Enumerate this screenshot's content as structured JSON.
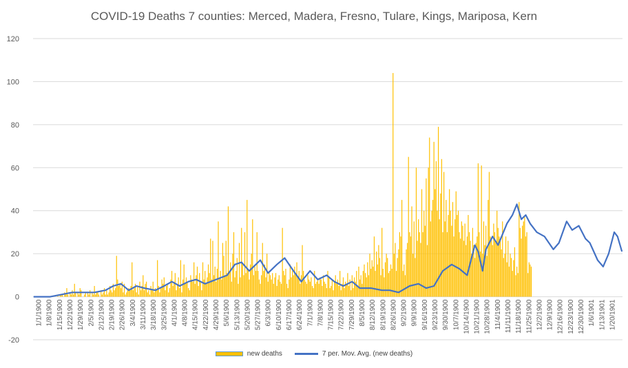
{
  "colors": {
    "bar": "#ffc000",
    "line": "#4472c4",
    "grid": "#d9d9d9",
    "text": "#595959"
  },
  "chart_data": {
    "type": "bar",
    "title": "COVID-19 Deaths 7 counties: Merced,  Madera, Fresno, Tulare,  Kings, Mariposa, Kern",
    "xlabel": "",
    "ylabel": "",
    "ylim": [
      -20,
      120
    ],
    "y_ticks": [
      -20,
      0,
      20,
      40,
      60,
      80,
      100,
      120
    ],
    "grid": "horizontal",
    "legend_position": "bottom",
    "x_tick_labels": [
      "1/1/1900",
      "1/8/1900",
      "1/15/1900",
      "1/22/1900",
      "1/29/1900",
      "2/5/1900",
      "2/12/1900",
      "2/19/1900",
      "2/26/1900",
      "3/4/1900",
      "3/11/1900",
      "3/18/1900",
      "3/25/1900",
      "4/1/1900",
      "4/8/1900",
      "4/15/1900",
      "4/22/1900",
      "4/29/1900",
      "5/6/1900",
      "5/13/1900",
      "5/20/1900",
      "5/27/1900",
      "6/3/1900",
      "6/10/1900",
      "6/17/1900",
      "6/24/1900",
      "7/1/1900",
      "7/8/1900",
      "7/15/1900",
      "7/22/1900",
      "7/29/1900",
      "8/5/1900",
      "8/12/1900",
      "8/19/1900",
      "8/26/1900",
      "9/2/1900",
      "9/9/1900",
      "9/16/1900",
      "9/23/1900",
      "9/30/1900",
      "10/7/1900",
      "10/14/1900",
      "10/21/1900",
      "10/28/1900",
      "11/4/1900",
      "11/11/1900",
      "11/18/1900",
      "11/25/1900",
      "12/2/1900",
      "12/9/1900",
      "12/16/1900",
      "12/23/1900",
      "12/30/1900",
      "1/6/1901",
      "1/13/1901",
      "1/20/1901"
    ],
    "series": [
      {
        "name": "new deaths",
        "kind": "bar",
        "values": [
          0,
          0,
          0,
          0,
          0,
          0,
          0,
          0,
          0,
          0,
          0,
          0,
          0,
          0,
          0,
          0,
          0,
          0,
          0,
          0,
          0,
          0,
          1,
          0,
          1,
          1,
          1,
          0,
          2,
          1,
          4,
          1,
          0,
          2,
          1,
          3,
          1,
          6,
          2,
          0,
          2,
          1,
          4,
          3,
          0,
          0,
          1,
          2,
          0,
          2,
          1,
          3,
          0,
          2,
          1,
          5,
          1,
          2,
          2,
          1,
          0,
          3,
          1,
          2,
          4,
          1,
          3,
          1,
          2,
          5,
          3,
          2,
          6,
          3,
          4,
          19,
          8,
          5,
          6,
          4,
          7,
          2,
          6,
          1,
          2,
          3,
          4,
          3,
          5,
          16,
          3,
          4,
          6,
          2,
          5,
          1,
          7,
          3,
          5,
          10,
          3,
          6,
          7,
          2,
          3,
          1,
          5,
          3,
          7,
          2,
          4,
          3,
          17,
          5,
          2,
          4,
          8,
          6,
          9,
          3,
          5,
          6,
          2,
          4,
          8,
          12,
          5,
          7,
          11,
          3,
          6,
          9,
          4,
          17,
          2,
          8,
          15,
          6,
          9,
          7,
          4,
          3,
          10,
          8,
          7,
          16,
          6,
          10,
          14,
          5,
          11,
          7,
          3,
          16,
          8,
          12,
          6,
          9,
          15,
          11,
          27,
          8,
          26,
          10,
          14,
          7,
          13,
          35,
          9,
          12,
          8,
          25,
          19,
          10,
          26,
          11,
          42,
          12,
          16,
          7,
          20,
          30,
          9,
          12,
          18,
          6,
          25,
          9,
          32,
          15,
          10,
          30,
          11,
          45,
          13,
          8,
          15,
          20,
          36,
          10,
          14,
          12,
          30,
          12,
          8,
          6,
          10,
          25,
          12,
          15,
          9,
          20,
          7,
          12,
          10,
          8,
          11,
          6,
          9,
          11,
          5,
          8,
          10,
          7,
          6,
          32,
          12,
          10,
          13,
          6,
          4,
          8,
          15,
          9,
          12,
          10,
          14,
          11,
          16,
          9,
          12,
          6,
          10,
          24,
          12,
          8,
          7,
          6,
          10,
          8,
          7,
          9,
          5,
          4,
          12,
          6,
          7,
          8,
          6,
          9,
          8,
          5,
          10,
          7,
          6,
          4,
          12,
          9,
          4,
          5,
          8,
          3,
          7,
          10,
          6,
          8,
          5,
          12,
          3,
          6,
          9,
          4,
          7,
          6,
          11,
          5,
          8,
          3,
          10,
          4,
          9,
          7,
          12,
          5,
          14,
          8,
          10,
          6,
          12,
          15,
          11,
          9,
          16,
          10,
          20,
          13,
          17,
          14,
          28,
          12,
          21,
          15,
          24,
          18,
          10,
          32,
          13,
          9,
          16,
          20,
          18,
          11,
          12,
          15,
          13,
          104,
          20,
          25,
          12,
          18,
          22,
          30,
          28,
          45,
          12,
          15,
          10,
          22,
          25,
          65,
          30,
          28,
          42,
          20,
          35,
          18,
          60,
          26,
          36,
          30,
          25,
          50,
          30,
          40,
          33,
          55,
          24,
          60,
          74,
          35,
          40,
          45,
          72,
          50,
          63,
          40,
          79,
          36,
          48,
          64,
          30,
          58,
          35,
          45,
          30,
          38,
          50,
          40,
          33,
          44,
          28,
          36,
          49,
          38,
          40,
          30,
          27,
          35,
          33,
          26,
          34,
          24,
          28,
          38,
          30,
          26,
          20,
          32,
          24,
          18,
          25,
          28,
          62,
          30,
          21,
          61,
          20,
          35,
          24,
          33,
          19,
          45,
          58,
          28,
          27,
          24,
          34,
          30,
          25,
          40,
          32,
          28,
          27,
          22,
          35,
          18,
          20,
          28,
          16,
          26,
          14,
          20,
          18,
          12,
          17,
          23,
          10,
          14,
          11,
          44,
          32,
          27,
          33,
          35,
          37,
          28,
          30,
          11,
          16,
          15,
          14
        ]
      },
      {
        "name": "7 per. Mov. Avg. (new deaths)",
        "kind": "line",
        "keyframes": [
          [
            0,
            0
          ],
          [
            15,
            0
          ],
          [
            25,
            1
          ],
          [
            35,
            2
          ],
          [
            45,
            2
          ],
          [
            55,
            2
          ],
          [
            65,
            3
          ],
          [
            72,
            5
          ],
          [
            79,
            6
          ],
          [
            86,
            3
          ],
          [
            93,
            5
          ],
          [
            100,
            4
          ],
          [
            110,
            3
          ],
          [
            118,
            5
          ],
          [
            125,
            7
          ],
          [
            132,
            5
          ],
          [
            140,
            7
          ],
          [
            147,
            8
          ],
          [
            155,
            6
          ],
          [
            165,
            8
          ],
          [
            175,
            10
          ],
          [
            182,
            15
          ],
          [
            188,
            16
          ],
          [
            195,
            12
          ],
          [
            205,
            17
          ],
          [
            212,
            11
          ],
          [
            220,
            15
          ],
          [
            227,
            18
          ],
          [
            235,
            12
          ],
          [
            242,
            7
          ],
          [
            250,
            12
          ],
          [
            257,
            8
          ],
          [
            265,
            10
          ],
          [
            272,
            7
          ],
          [
            280,
            5
          ],
          [
            288,
            7
          ],
          [
            295,
            4
          ],
          [
            305,
            4
          ],
          [
            315,
            3
          ],
          [
            322,
            3
          ],
          [
            330,
            2
          ],
          [
            340,
            5
          ],
          [
            348,
            6
          ],
          [
            355,
            4
          ],
          [
            362,
            5
          ],
          [
            370,
            12
          ],
          [
            378,
            15
          ],
          [
            385,
            13
          ],
          [
            392,
            10
          ],
          [
            399,
            24
          ],
          [
            402,
            21
          ],
          [
            406,
            12
          ],
          [
            409,
            22
          ],
          [
            415,
            28
          ],
          [
            420,
            24
          ],
          [
            428,
            34
          ],
          [
            433,
            38
          ],
          [
            437,
            43
          ],
          [
            441,
            36
          ],
          [
            445,
            38
          ],
          [
            449,
            34
          ],
          [
            455,
            30
          ],
          [
            462,
            28
          ],
          [
            470,
            22
          ],
          [
            475,
            25
          ],
          [
            482,
            35
          ],
          [
            487,
            31
          ],
          [
            493,
            33
          ],
          [
            499,
            27
          ],
          [
            503,
            25
          ],
          [
            510,
            17
          ],
          [
            515,
            14
          ],
          [
            520,
            20
          ],
          [
            525,
            30
          ],
          [
            528,
            28
          ],
          [
            532,
            21
          ]
        ]
      }
    ],
    "total_points": 533
  },
  "legend": {
    "bars_label": "new deaths",
    "line_label": "7 per. Mov. Avg. (new deaths)"
  }
}
